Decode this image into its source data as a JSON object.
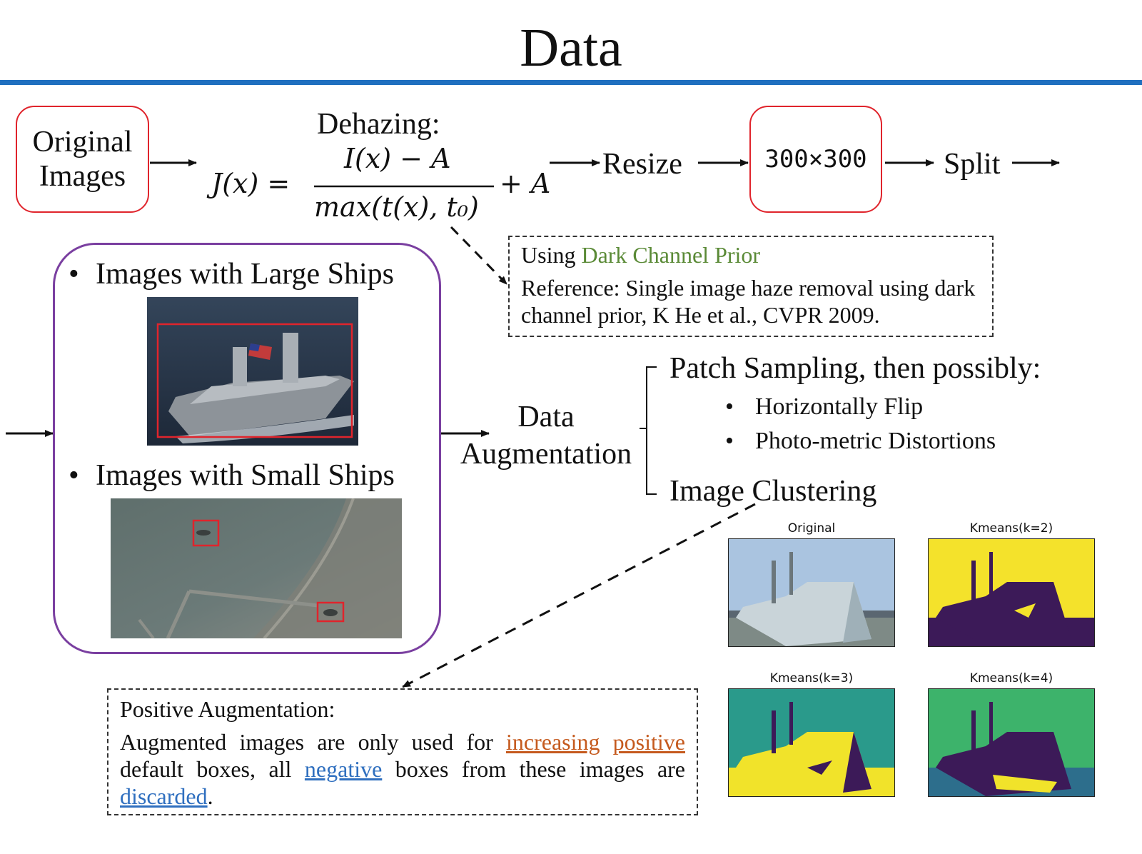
{
  "title": "Data",
  "pipeline": {
    "original_images": "Original Images",
    "dehazing_label": "Dehazing:",
    "formula_lhs": "J(x) =",
    "formula_num": "I(x) − A",
    "formula_den": "max(t(x), t₀)",
    "formula_plus": "+ A",
    "resize": "Resize",
    "size": "300×300",
    "split": "Split"
  },
  "dcp_note": {
    "using_prefix": "Using ",
    "method": "Dark Channel Prior",
    "reference": "Reference: Single image haze removal using dark channel prior, K He et al., CVPR 2009."
  },
  "examples": {
    "large": "Images with Large Ships",
    "small": "Images with Small Ships",
    "bullet": "•"
  },
  "augmentation": {
    "label_line1": "Data",
    "label_line2": "Augmentation",
    "patch": "Patch Sampling, then possibly:",
    "flip": "Horizontally Flip",
    "photometric": "Photo-metric Distortions",
    "clustering": "Image Clustering"
  },
  "cluster_panels": {
    "original": "Original",
    "k2": "Kmeans(k=2)",
    "k3": "Kmeans(k=3)",
    "k4": "Kmeans(k=4)"
  },
  "positive_note": {
    "heading": "Positive Augmentation:",
    "text_1": "Augmented images are only used for ",
    "increasing": "increasing",
    "positive": "positive",
    "text_2": " default boxes, all ",
    "negative": "negative",
    "text_3": " boxes from these images are ",
    "discarded": "discarded",
    "text_4": "."
  },
  "colors": {
    "rule": "#1f6fbf",
    "red_box": "#e0242c",
    "purple_box": "#7a3fa0",
    "green_text": "#5a8a36",
    "orange_text": "#c55a1e",
    "blue_text": "#2f6fbf"
  }
}
